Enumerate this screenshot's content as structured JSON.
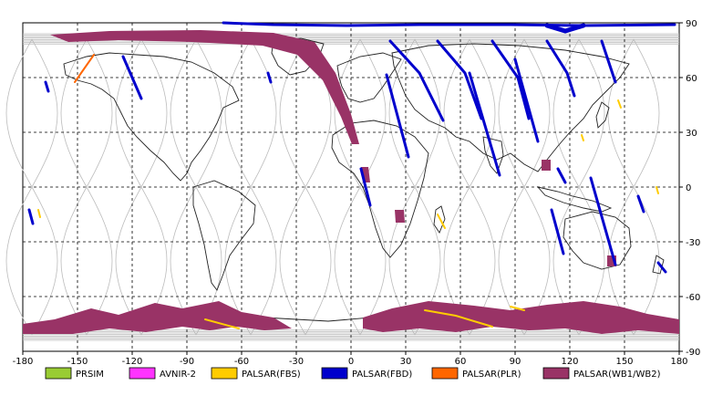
{
  "map": {
    "x_ticks": [
      "-180",
      "-150",
      "-120",
      "-90",
      "-60",
      "-30",
      "0",
      "30",
      "60",
      "90",
      "120",
      "150",
      "180"
    ],
    "y_ticks": [
      "90",
      "60",
      "30",
      "0",
      "-30",
      "-60",
      "-90"
    ],
    "x_range": [
      -180,
      180
    ],
    "y_range": [
      -90,
      90
    ]
  },
  "legend": [
    {
      "label": "PRSIM",
      "color": "#99cc33"
    },
    {
      "label": "AVNIR-2",
      "color": "#ff33ff"
    },
    {
      "label": "PALSAR(FBS)",
      "color": "#ffcc00"
    },
    {
      "label": "PALSAR(FBD)",
      "color": "#0000cc"
    },
    {
      "label": "PALSAR(PLR)",
      "color": "#ff6600"
    },
    {
      "label": "PALSAR(WB1/WB2)",
      "color": "#993366"
    }
  ],
  "colors": {
    "grid": "#000000",
    "coast": "#222222",
    "orbit": "#bbbbbb"
  }
}
